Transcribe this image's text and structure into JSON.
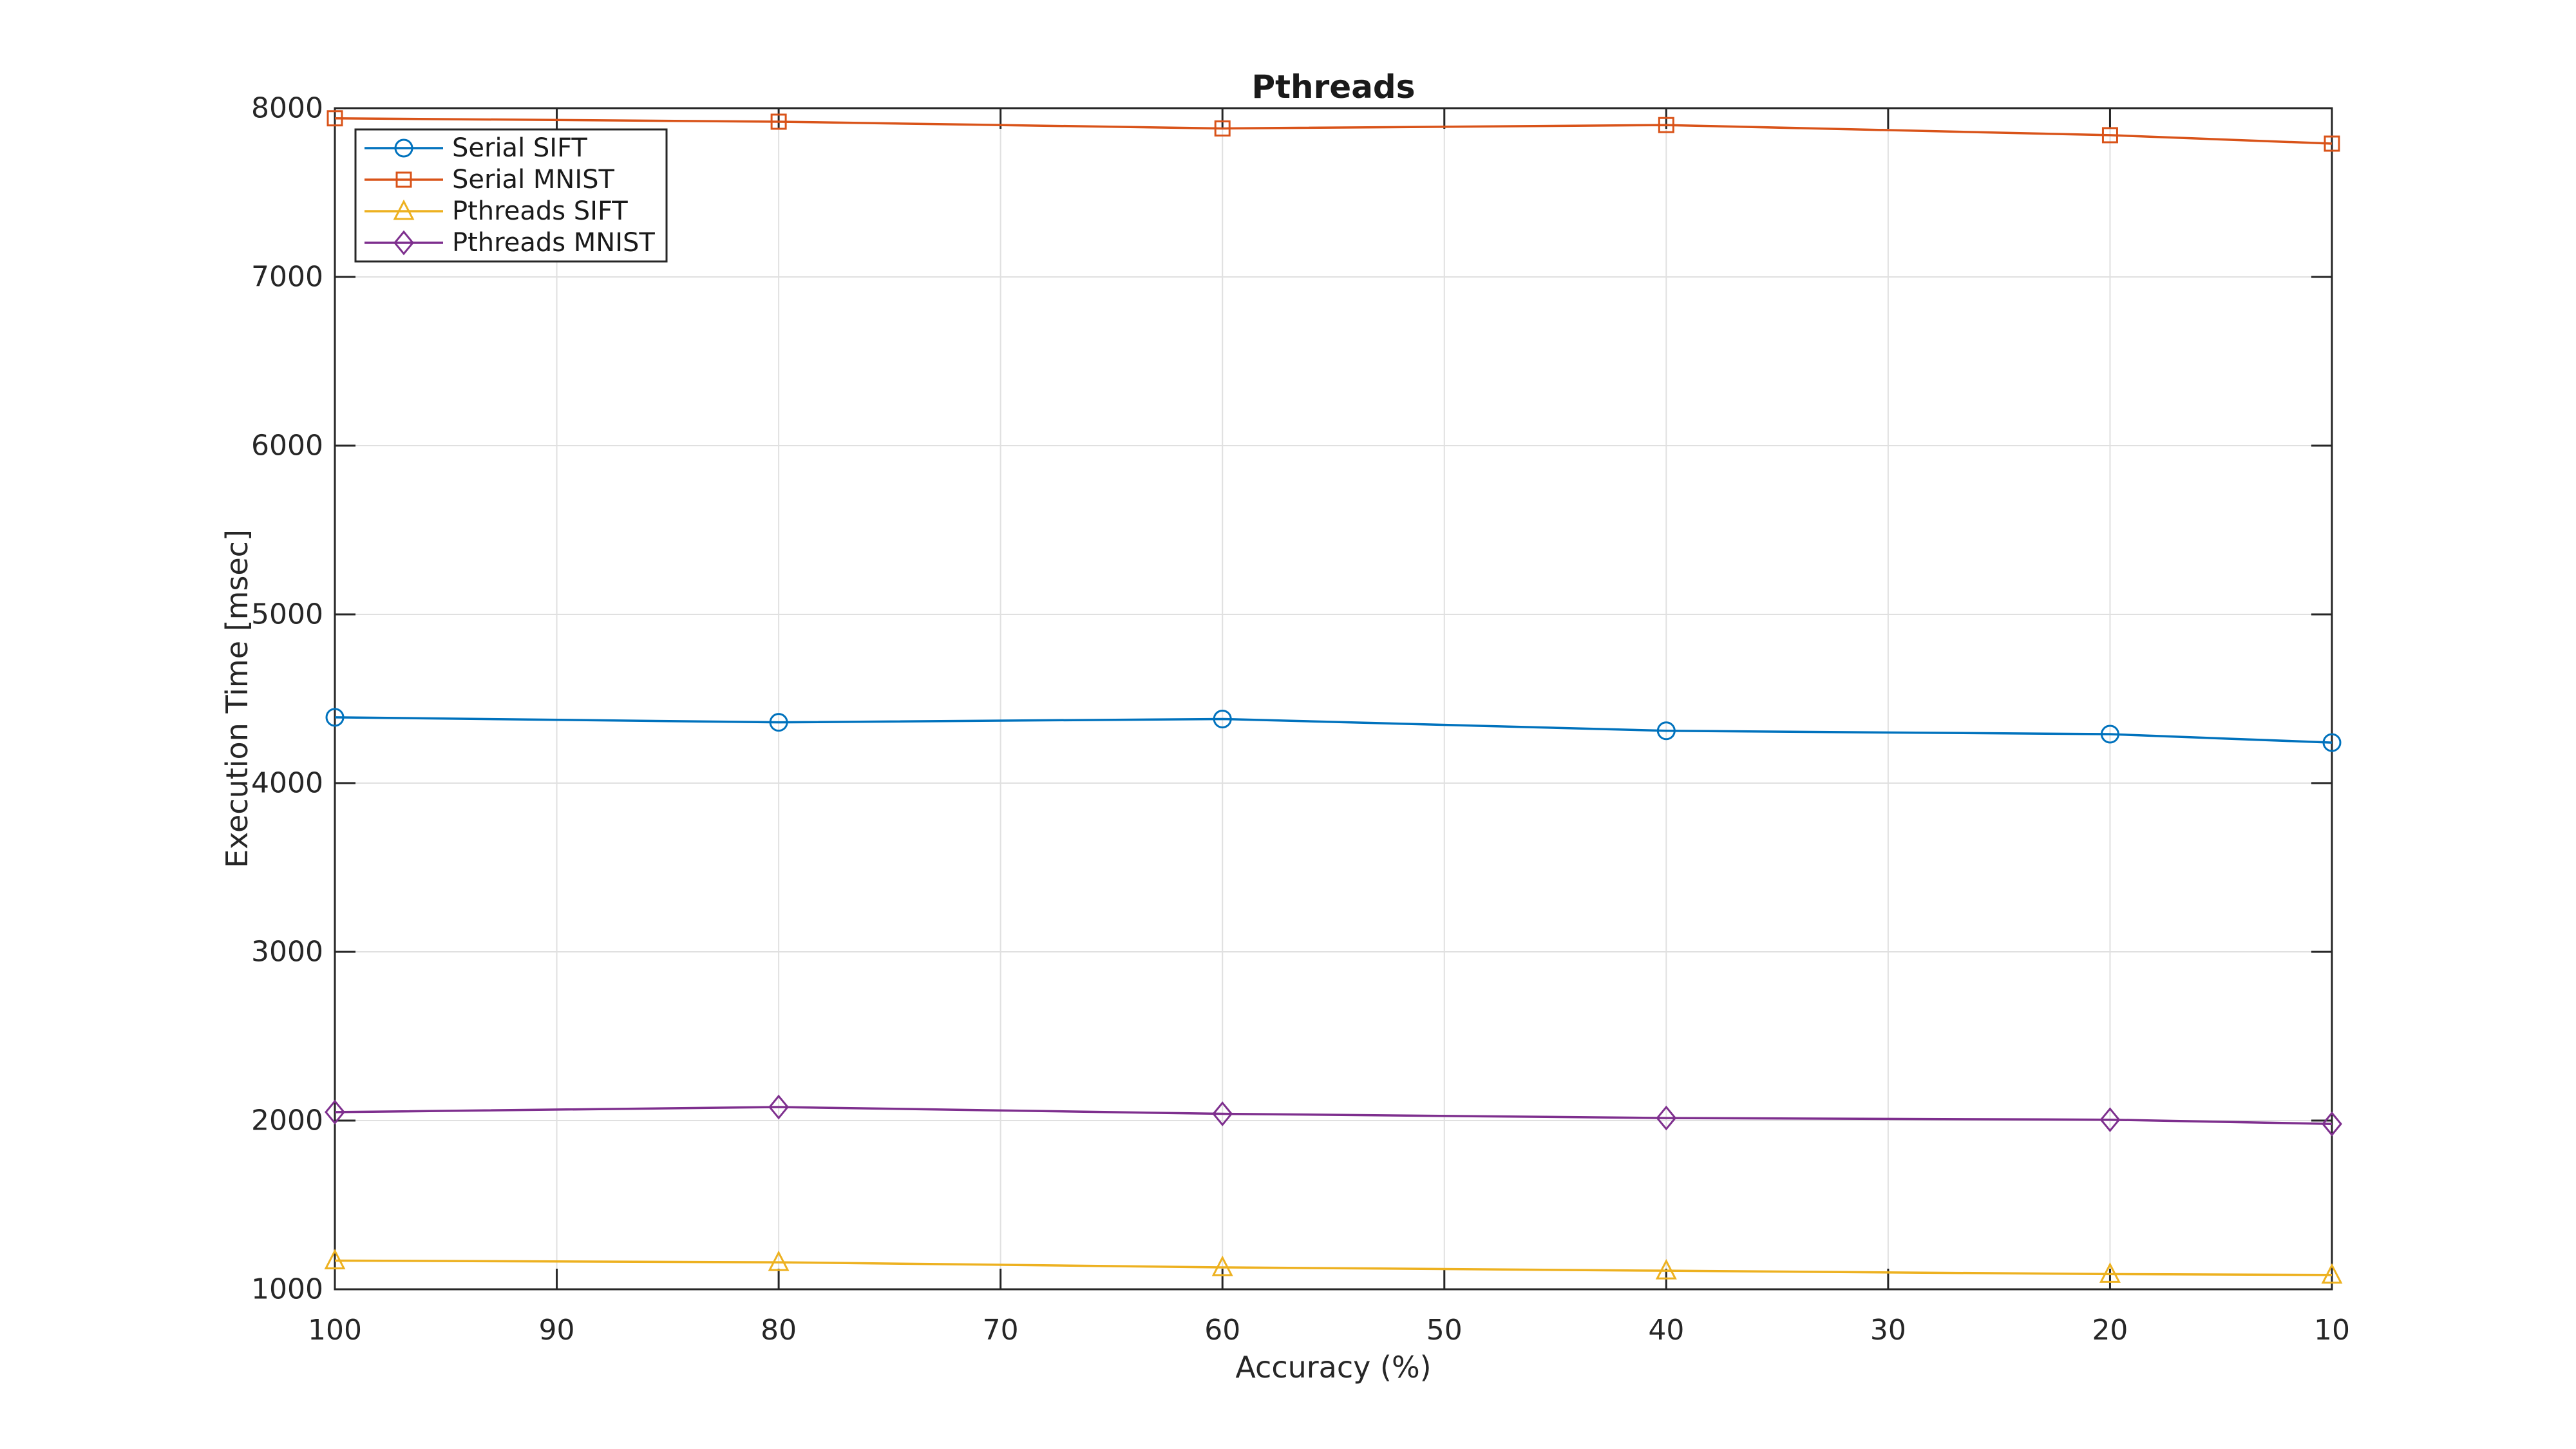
{
  "chart_data": {
    "type": "line",
    "title": "Pthreads",
    "xlabel": "Accuracy (%)",
    "ylabel": "Execution Time [msec]",
    "x": [
      100,
      80,
      60,
      40,
      20,
      10
    ],
    "x_ticks": [
      100,
      90,
      80,
      70,
      60,
      50,
      40,
      30,
      20,
      10
    ],
    "y_ticks": [
      1000,
      2000,
      3000,
      4000,
      5000,
      6000,
      7000,
      8000
    ],
    "xlim": [
      100,
      10
    ],
    "ylim": [
      1000,
      8000
    ],
    "x_axis_reversed": true,
    "grid": true,
    "legend_position": "top-left",
    "axis_color": "#262626",
    "grid_color": "#e0e0e0",
    "background_color": "#ffffff",
    "series": [
      {
        "name": "Serial SIFT",
        "color": "#0072BD",
        "marker": "circle",
        "values": [
          4390,
          4360,
          4380,
          4310,
          4290,
          4240
        ]
      },
      {
        "name": "Serial MNIST",
        "color": "#D95319",
        "marker": "square",
        "values": [
          7940,
          7920,
          7880,
          7900,
          7840,
          7790
        ]
      },
      {
        "name": "Pthreads SIFT",
        "color": "#EDB120",
        "marker": "triangle",
        "values": [
          1170,
          1160,
          1130,
          1110,
          1090,
          1085
        ]
      },
      {
        "name": "Pthreads MNIST",
        "color": "#7E2F8E",
        "marker": "diamond",
        "values": [
          2050,
          2080,
          2040,
          2015,
          2005,
          1980
        ]
      }
    ]
  }
}
